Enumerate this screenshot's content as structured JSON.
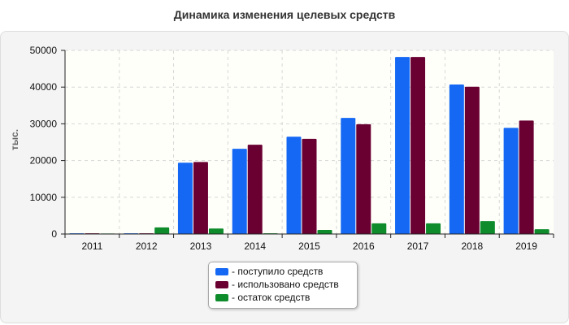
{
  "chart_data": {
    "type": "bar",
    "title": "Динамика изменения целевых средств",
    "ylabel": "тыс.",
    "xlabel": "",
    "categories": [
      "2011",
      "2012",
      "2013",
      "2014",
      "2015",
      "2016",
      "2017",
      "2018",
      "2019"
    ],
    "ylim": [
      0,
      50000
    ],
    "yticks": [
      0,
      10000,
      20000,
      30000,
      40000,
      50000
    ],
    "grid": true,
    "legend_position": "bottom-center",
    "series": [
      {
        "name": "- поступило средств",
        "color": "#1468f4",
        "values": [
          200,
          200,
          19400,
          23200,
          26500,
          31600,
          48200,
          40700,
          28900
        ]
      },
      {
        "name": "- использовано средств",
        "color": "#6a0032",
        "values": [
          200,
          200,
          19600,
          24300,
          25900,
          29900,
          48200,
          40100,
          30900
        ]
      },
      {
        "name": "- остаток средств",
        "color": "#0e8c2c",
        "values": [
          150,
          1800,
          1500,
          200,
          1100,
          2900,
          2900,
          3500,
          1300
        ]
      }
    ]
  }
}
